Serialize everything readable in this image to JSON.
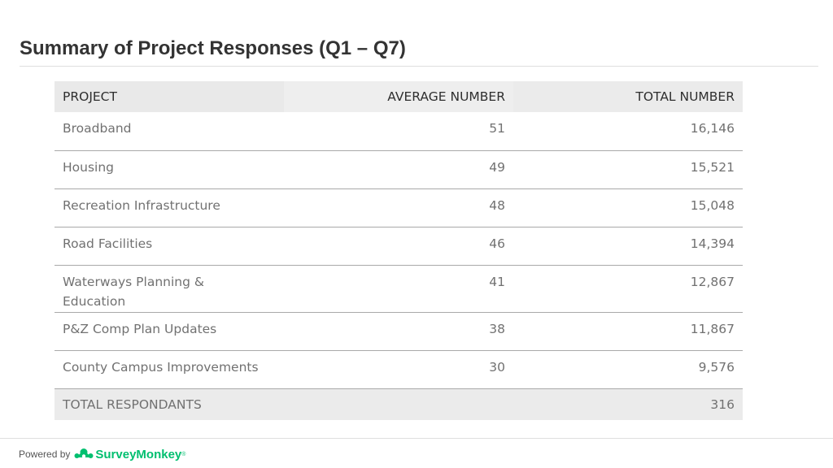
{
  "slide": {
    "title": "Summary of Project Responses (Q1 – Q7)"
  },
  "table": {
    "headers": [
      "PROJECT",
      "AVERAGE NUMBER",
      "TOTAL NUMBER"
    ],
    "rows": [
      {
        "project": "Broadband",
        "average": "51",
        "total": "16,146"
      },
      {
        "project": "Housing",
        "average": "49",
        "total": "15,521"
      },
      {
        "project": "Recreation Infrastructure",
        "average": "48",
        "total": "15,048"
      },
      {
        "project": "Road Facilities",
        "average": "46",
        "total": "14,394"
      },
      {
        "project": "Waterways Planning & Education",
        "average": "41",
        "total": "12,867"
      },
      {
        "project": "P&Z Comp Plan Updates",
        "average": "38",
        "total": "11,867"
      },
      {
        "project": "County Campus Improvements",
        "average": "30",
        "total": "9,576"
      }
    ],
    "footer": {
      "label": "TOTAL RESPONDANTS",
      "average": "",
      "total": "316"
    }
  },
  "branding": {
    "powered_by": "Powered by",
    "brand_name": "SurveyMonkey",
    "trademark": "®",
    "icon": "surveymonkey-logo-icon",
    "brand_color": "#00bf6f"
  }
}
